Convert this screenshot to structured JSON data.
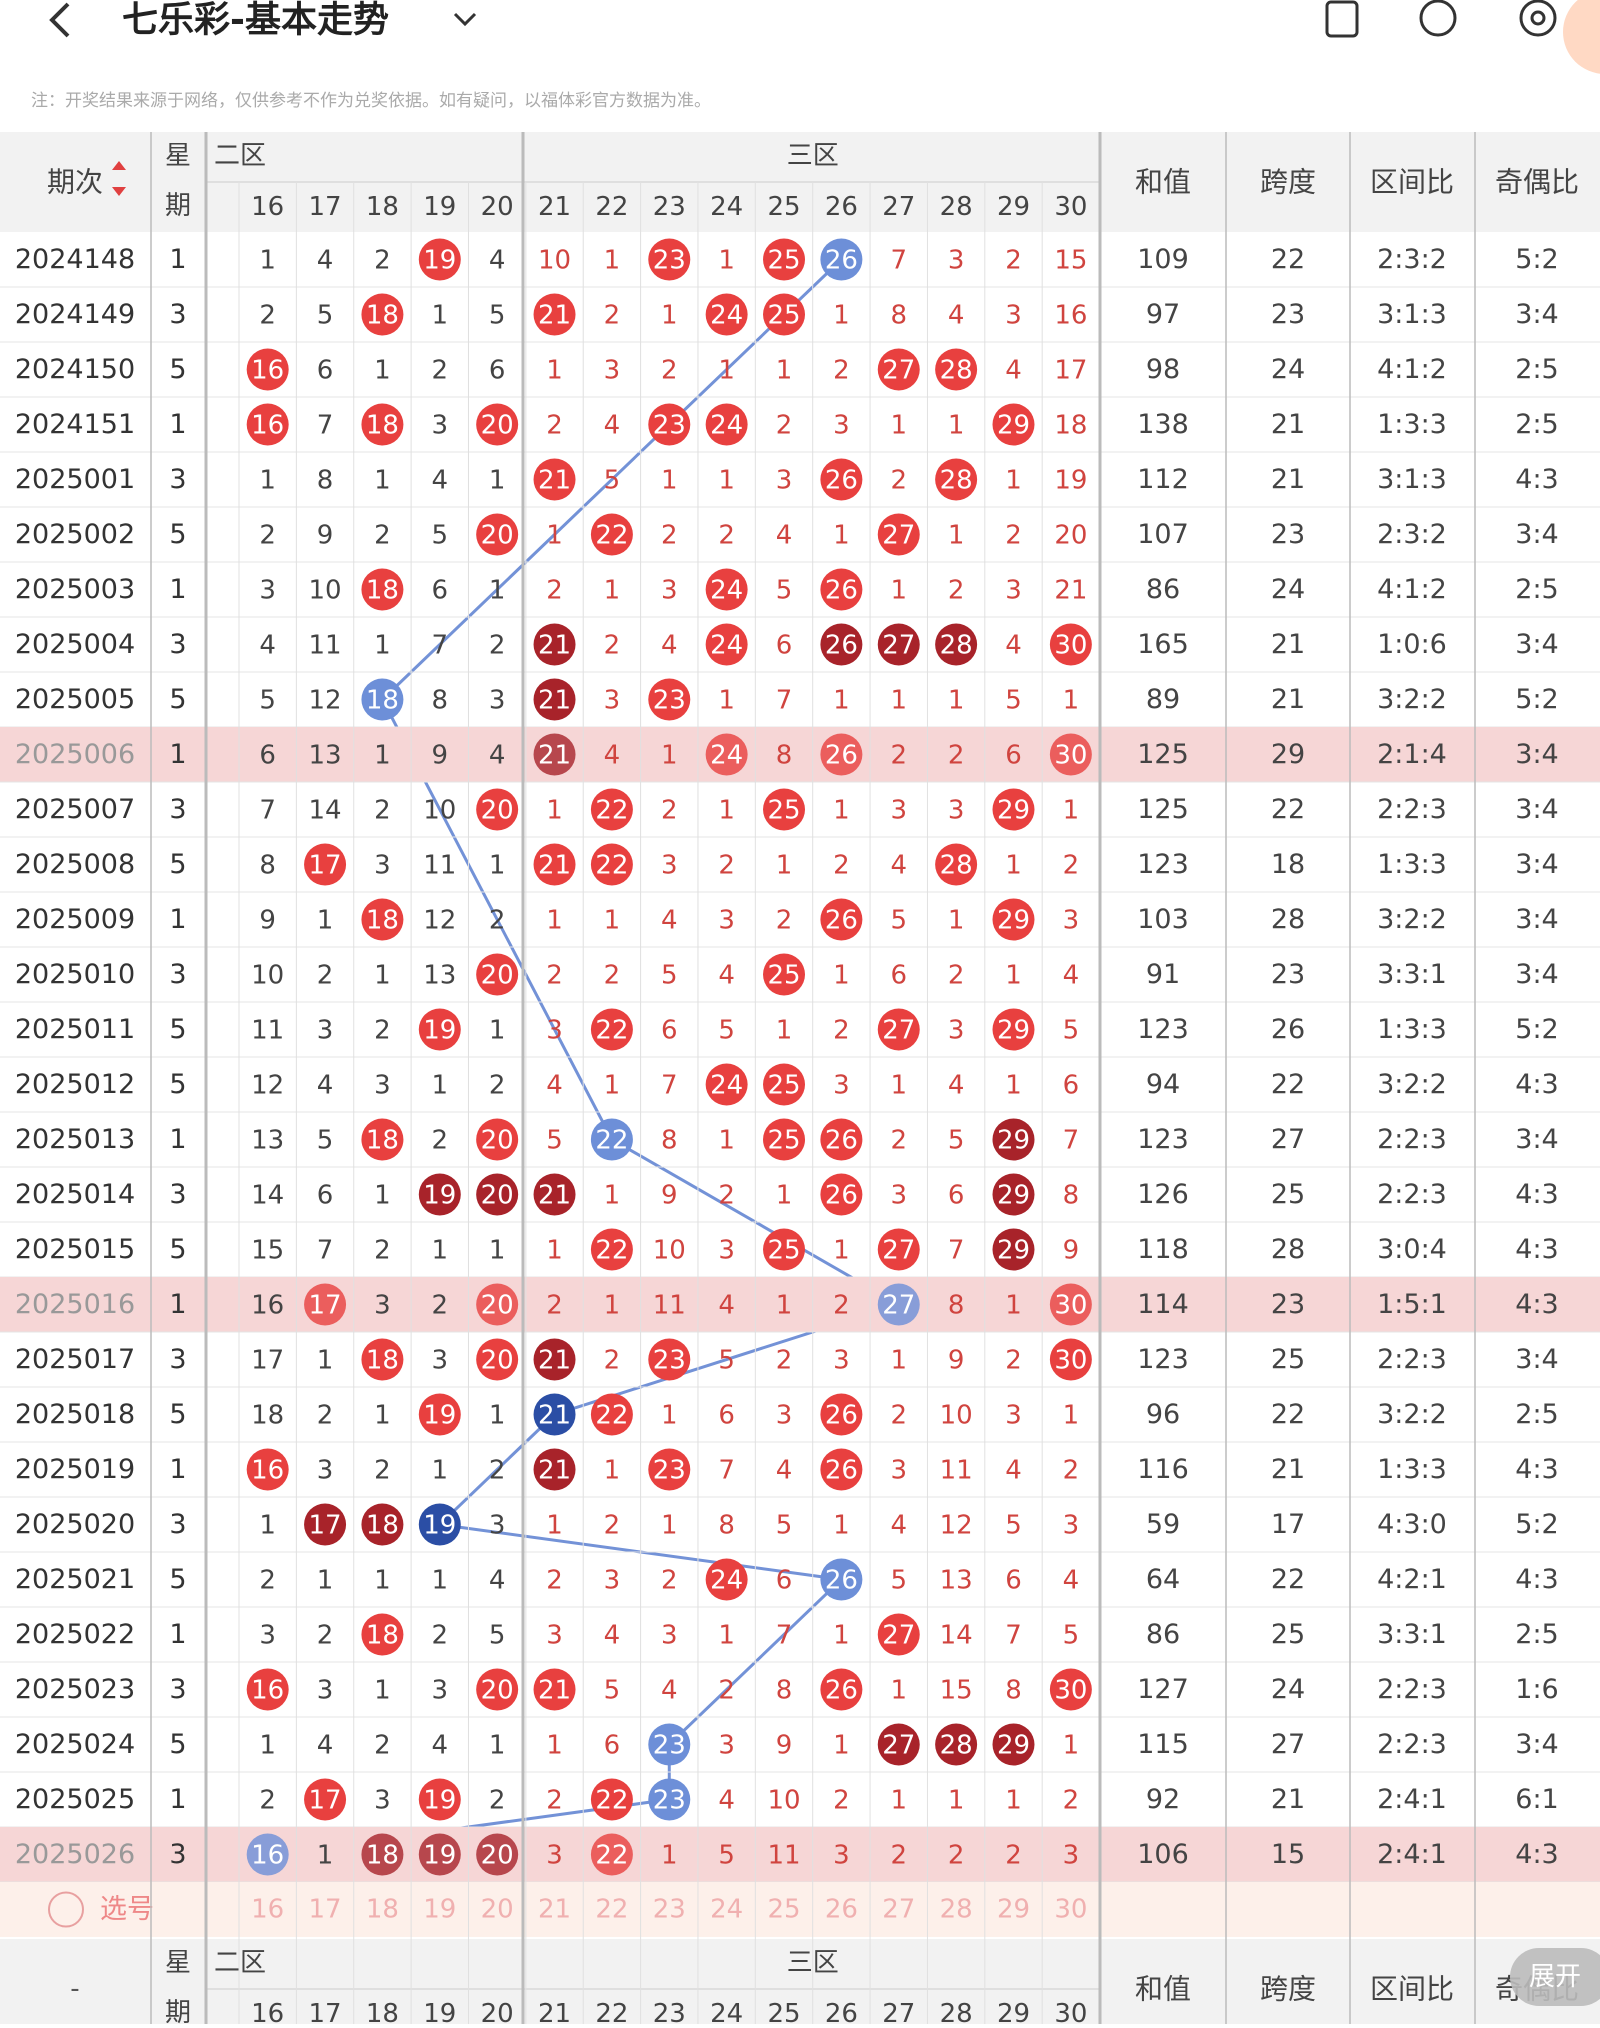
{
  "header": {
    "title": "七乐彩-基本走势",
    "note": "注：开奖结果来源于网络，仅供参考不作为兑奖依据。如有疑问，以福体彩官方数据为准。"
  },
  "table": {
    "columns": {
      "period": "期次",
      "weekday": [
        "星",
        "期"
      ],
      "zone2": "二区",
      "zone3": "三区",
      "numbers": [
        "16",
        "17",
        "18",
        "19",
        "20",
        "21",
        "22",
        "23",
        "24",
        "25",
        "26",
        "27",
        "28",
        "29",
        "30"
      ],
      "sum": "和值",
      "span": "跨度",
      "zone_ratio": "区间比",
      "parity_ratio": "奇偶比"
    },
    "ball_colors": {
      "r": "#e8403f",
      "d": "#a8232a",
      "b": "#6d8fd8",
      "n": "#2b4ea5"
    },
    "rows": [
      {
        "period": "2024148",
        "weekday": "1",
        "cells": [
          1,
          4,
          2,
          19,
          4,
          10,
          1,
          23,
          1,
          25,
          26,
          7,
          3,
          2,
          15
        ],
        "marks": "...r...r.rb....",
        "sum": "109",
        "span": "22",
        "zone_ratio": "2:3:2",
        "parity_ratio": "5:2"
      },
      {
        "period": "2024149",
        "weekday": "3",
        "cells": [
          2,
          5,
          18,
          1,
          5,
          21,
          2,
          1,
          24,
          25,
          1,
          8,
          4,
          3,
          16
        ],
        "marks": "..r..r..rr.....",
        "sum": "97",
        "span": "23",
        "zone_ratio": "3:1:3",
        "parity_ratio": "3:4"
      },
      {
        "period": "2024150",
        "weekday": "5",
        "cells": [
          16,
          6,
          1,
          2,
          6,
          1,
          3,
          2,
          1,
          1,
          2,
          27,
          28,
          4,
          17
        ],
        "marks": "r..........rr..",
        "sum": "98",
        "span": "24",
        "zone_ratio": "4:1:2",
        "parity_ratio": "2:5"
      },
      {
        "period": "2024151",
        "weekday": "1",
        "cells": [
          16,
          7,
          18,
          3,
          20,
          2,
          4,
          23,
          24,
          2,
          3,
          1,
          1,
          29,
          18
        ],
        "marks": "r.r.r..rr....r.",
        "sum": "138",
        "span": "21",
        "zone_ratio": "1:3:3",
        "parity_ratio": "2:5"
      },
      {
        "period": "2025001",
        "weekday": "3",
        "cells": [
          1,
          8,
          1,
          4,
          1,
          21,
          5,
          1,
          1,
          3,
          26,
          2,
          28,
          1,
          19
        ],
        "marks": ".....r....r.r..",
        "sum": "112",
        "span": "21",
        "zone_ratio": "3:1:3",
        "parity_ratio": "4:3"
      },
      {
        "period": "2025002",
        "weekday": "5",
        "cells": [
          2,
          9,
          2,
          5,
          20,
          1,
          22,
          2,
          2,
          4,
          1,
          27,
          1,
          2,
          20
        ],
        "marks": "....r.r....r...",
        "sum": "107",
        "span": "23",
        "zone_ratio": "2:3:2",
        "parity_ratio": "3:4"
      },
      {
        "period": "2025003",
        "weekday": "1",
        "cells": [
          3,
          10,
          18,
          6,
          1,
          2,
          1,
          3,
          24,
          5,
          26,
          1,
          2,
          3,
          21
        ],
        "marks": "..r.....r.r....",
        "sum": "86",
        "span": "24",
        "zone_ratio": "4:1:2",
        "parity_ratio": "2:5"
      },
      {
        "period": "2025004",
        "weekday": "3",
        "cells": [
          4,
          11,
          1,
          7,
          2,
          21,
          2,
          4,
          24,
          6,
          26,
          27,
          28,
          4,
          30
        ],
        "marks": ".....d..r.ddd.r",
        "sum": "165",
        "span": "21",
        "zone_ratio": "1:0:6",
        "parity_ratio": "3:4"
      },
      {
        "period": "2025005",
        "weekday": "5",
        "cells": [
          5,
          12,
          18,
          8,
          3,
          21,
          3,
          23,
          1,
          7,
          1,
          1,
          1,
          5,
          1
        ],
        "marks": "..b..d.r.......",
        "sum": "89",
        "span": "21",
        "zone_ratio": "3:2:2",
        "parity_ratio": "5:2"
      },
      {
        "period": "2025006",
        "weekday": "1",
        "cells": [
          6,
          13,
          1,
          9,
          4,
          21,
          4,
          1,
          24,
          8,
          26,
          2,
          2,
          6,
          30
        ],
        "marks": ".....d..r.r...r",
        "sum": "125",
        "span": "29",
        "zone_ratio": "2:1:4",
        "parity_ratio": "3:4",
        "highlight": true
      },
      {
        "period": "2025007",
        "weekday": "3",
        "cells": [
          7,
          14,
          2,
          10,
          20,
          1,
          22,
          2,
          1,
          25,
          1,
          3,
          3,
          29,
          1
        ],
        "marks": "....r.r..r...r.",
        "sum": "125",
        "span": "22",
        "zone_ratio": "2:2:3",
        "parity_ratio": "3:4"
      },
      {
        "period": "2025008",
        "weekday": "5",
        "cells": [
          8,
          17,
          3,
          11,
          1,
          21,
          22,
          3,
          2,
          1,
          2,
          4,
          28,
          1,
          2
        ],
        "marks": ".r...rr.....r..",
        "sum": "123",
        "span": "18",
        "zone_ratio": "1:3:3",
        "parity_ratio": "3:4"
      },
      {
        "period": "2025009",
        "weekday": "1",
        "cells": [
          9,
          1,
          18,
          12,
          2,
          1,
          1,
          4,
          3,
          2,
          26,
          5,
          1,
          29,
          3
        ],
        "marks": "..r.......r..r.",
        "sum": "103",
        "span": "28",
        "zone_ratio": "3:2:2",
        "parity_ratio": "3:4"
      },
      {
        "period": "2025010",
        "weekday": "3",
        "cells": [
          10,
          2,
          1,
          13,
          20,
          2,
          2,
          5,
          4,
          25,
          1,
          6,
          2,
          1,
          4
        ],
        "marks": "....r....r.....",
        "sum": "91",
        "span": "23",
        "zone_ratio": "3:3:1",
        "parity_ratio": "3:4"
      },
      {
        "period": "2025011",
        "weekday": "5",
        "cells": [
          11,
          3,
          2,
          19,
          1,
          3,
          22,
          6,
          5,
          1,
          2,
          27,
          3,
          29,
          5
        ],
        "marks": "...r..r....r.r.",
        "sum": "123",
        "span": "26",
        "zone_ratio": "1:3:3",
        "parity_ratio": "5:2"
      },
      {
        "period": "2025012",
        "weekday": "5",
        "cells": [
          12,
          4,
          3,
          1,
          2,
          4,
          1,
          7,
          24,
          25,
          3,
          1,
          4,
          1,
          6
        ],
        "marks": "........rr.....",
        "sum": "94",
        "span": "22",
        "zone_ratio": "3:2:2",
        "parity_ratio": "4:3"
      },
      {
        "period": "2025013",
        "weekday": "1",
        "cells": [
          13,
          5,
          18,
          2,
          20,
          5,
          22,
          8,
          1,
          25,
          26,
          2,
          5,
          29,
          7
        ],
        "marks": "..r.r.b..rr..d.",
        "sum": "123",
        "span": "27",
        "zone_ratio": "2:2:3",
        "parity_ratio": "3:4"
      },
      {
        "period": "2025014",
        "weekday": "3",
        "cells": [
          14,
          6,
          1,
          19,
          20,
          21,
          1,
          9,
          2,
          1,
          26,
          3,
          6,
          29,
          8
        ],
        "marks": "...ddd....r..d.",
        "sum": "126",
        "span": "25",
        "zone_ratio": "2:2:3",
        "parity_ratio": "4:3"
      },
      {
        "period": "2025015",
        "weekday": "5",
        "cells": [
          15,
          7,
          2,
          1,
          1,
          1,
          22,
          10,
          3,
          25,
          1,
          27,
          7,
          29,
          9
        ],
        "marks": "......r..r.r.d.",
        "sum": "118",
        "span": "28",
        "zone_ratio": "3:0:4",
        "parity_ratio": "4:3"
      },
      {
        "period": "2025016",
        "weekday": "1",
        "cells": [
          16,
          17,
          3,
          2,
          20,
          2,
          1,
          11,
          4,
          1,
          2,
          27,
          8,
          1,
          30
        ],
        "marks": ".r..r......b..r",
        "sum": "114",
        "span": "23",
        "zone_ratio": "1:5:1",
        "parity_ratio": "4:3",
        "highlight": true
      },
      {
        "period": "2025017",
        "weekday": "3",
        "cells": [
          17,
          1,
          18,
          3,
          20,
          21,
          2,
          23,
          5,
          2,
          3,
          1,
          9,
          2,
          30
        ],
        "marks": "..r.rd.r......r",
        "sum": "123",
        "span": "25",
        "zone_ratio": "2:2:3",
        "parity_ratio": "3:4"
      },
      {
        "period": "2025018",
        "weekday": "5",
        "cells": [
          18,
          2,
          1,
          19,
          1,
          21,
          22,
          1,
          6,
          3,
          26,
          2,
          10,
          3,
          1
        ],
        "marks": "...r.nr...r....",
        "sum": "96",
        "span": "22",
        "zone_ratio": "3:2:2",
        "parity_ratio": "2:5"
      },
      {
        "period": "2025019",
        "weekday": "1",
        "cells": [
          16,
          3,
          2,
          1,
          2,
          21,
          1,
          23,
          7,
          4,
          26,
          3,
          11,
          4,
          2
        ],
        "marks": "r....d.r..r....",
        "sum": "116",
        "span": "21",
        "zone_ratio": "1:3:3",
        "parity_ratio": "4:3"
      },
      {
        "period": "2025020",
        "weekday": "3",
        "cells": [
          1,
          17,
          18,
          19,
          3,
          1,
          2,
          1,
          8,
          5,
          1,
          4,
          12,
          5,
          3
        ],
        "marks": ".ddn...........",
        "sum": "59",
        "span": "17",
        "zone_ratio": "4:3:0",
        "parity_ratio": "5:2"
      },
      {
        "period": "2025021",
        "weekday": "5",
        "cells": [
          2,
          1,
          1,
          1,
          4,
          2,
          3,
          2,
          24,
          6,
          26,
          5,
          13,
          6,
          4
        ],
        "marks": "........r.b....",
        "sum": "64",
        "span": "22",
        "zone_ratio": "4:2:1",
        "parity_ratio": "4:3"
      },
      {
        "period": "2025022",
        "weekday": "1",
        "cells": [
          3,
          2,
          18,
          2,
          5,
          3,
          4,
          3,
          1,
          7,
          1,
          27,
          14,
          7,
          5
        ],
        "marks": "..r........r...",
        "sum": "86",
        "span": "25",
        "zone_ratio": "3:3:1",
        "parity_ratio": "2:5"
      },
      {
        "period": "2025023",
        "weekday": "3",
        "cells": [
          16,
          3,
          1,
          3,
          20,
          21,
          5,
          4,
          2,
          8,
          26,
          1,
          15,
          8,
          30
        ],
        "marks": "r...rr....r...r",
        "sum": "127",
        "span": "24",
        "zone_ratio": "2:2:3",
        "parity_ratio": "1:6"
      },
      {
        "period": "2025024",
        "weekday": "5",
        "cells": [
          1,
          4,
          2,
          4,
          1,
          1,
          6,
          23,
          3,
          9,
          1,
          27,
          28,
          29,
          1
        ],
        "marks": ".......b...ddd.",
        "sum": "115",
        "span": "27",
        "zone_ratio": "2:2:3",
        "parity_ratio": "3:4"
      },
      {
        "period": "2025025",
        "weekday": "1",
        "cells": [
          2,
          17,
          3,
          19,
          2,
          2,
          22,
          23,
          4,
          10,
          2,
          1,
          1,
          1,
          2
        ],
        "marks": ".r.r..rb.......",
        "sum": "92",
        "span": "21",
        "zone_ratio": "2:4:1",
        "parity_ratio": "6:1"
      },
      {
        "period": "2025026",
        "weekday": "3",
        "cells": [
          16,
          1,
          18,
          19,
          20,
          3,
          22,
          1,
          5,
          11,
          3,
          2,
          2,
          2,
          3
        ],
        "marks": "b.ddd.r........",
        "sum": "106",
        "span": "15",
        "zone_ratio": "2:4:1",
        "parity_ratio": "4:3",
        "highlight": true
      }
    ]
  },
  "select_label": "选号",
  "footer_dash": "-",
  "expand": "展开"
}
